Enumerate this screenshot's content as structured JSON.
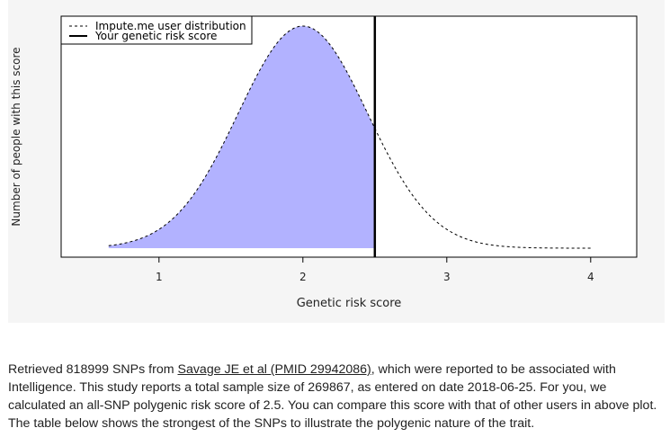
{
  "chart_data": {
    "type": "area",
    "xlabel": "Genetic risk score",
    "ylabel": "Number of people with this score",
    "xticks": [
      1,
      2,
      3,
      4
    ],
    "xlim": [
      0.32,
      4.32
    ],
    "grid": false,
    "legend_position": "top-left",
    "series": [
      {
        "name": "Impute.me user distribution",
        "style": "dashed",
        "distribution": "normal",
        "mean": 2.0,
        "sd": 0.45,
        "x_range": [
          0.65,
          4.0
        ]
      },
      {
        "name": "Your genetic risk score",
        "style": "solid-vertical-line",
        "x": 2.5
      }
    ],
    "shaded_region": {
      "from": 0.65,
      "to": 2.5
    },
    "colors": {
      "fill": "#b2b2ff",
      "curve": "#000000",
      "line": "#000000",
      "panel": "#f5f5f5"
    }
  },
  "description": {
    "before_link": "Retrieved 818999 SNPs from ",
    "link_text": "Savage JE et al (PMID 29942086)",
    "after_link": ", which were reported to be associated with Intelligence. This study reports a total sample size of 269867, as entered on date 2018-06-25. For you, we calculated an all-SNP polygenic risk score of 2.5. You can compare this score with that of other users in above plot. The table below shows the strongest of the SNPs to illustrate the polygenic nature of the trait."
  }
}
